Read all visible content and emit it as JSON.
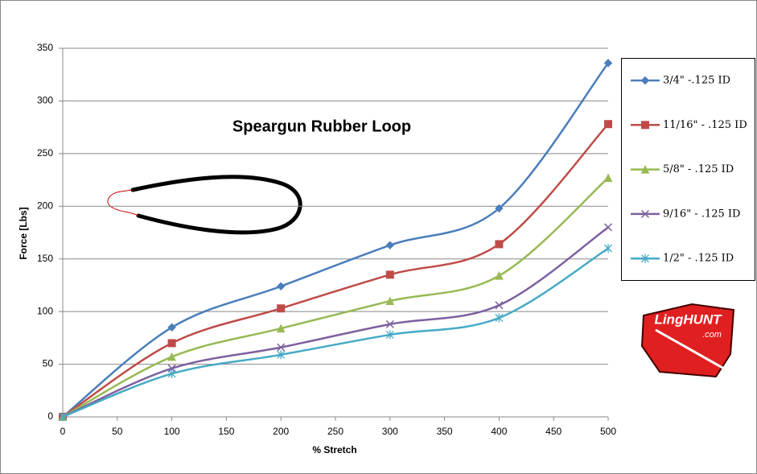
{
  "chart_data": {
    "type": "line",
    "title": "Speargun Rubber Loop",
    "x_label": "% Stretch",
    "y_label": "Force  [Lbs]",
    "x": [
      0,
      100,
      200,
      300,
      400,
      500
    ],
    "xlim": [
      0,
      500
    ],
    "xticks": [
      0,
      50,
      100,
      150,
      200,
      250,
      300,
      350,
      400,
      450,
      500
    ],
    "ylim": [
      0,
      350
    ],
    "yticks": [
      0,
      50,
      100,
      150,
      200,
      250,
      300,
      350
    ],
    "grid": true,
    "legend": "right",
    "series": [
      {
        "name": "3/4\" -.125 ID",
        "color": "#4a7ebb",
        "marker": "diamond",
        "values": [
          0,
          85,
          124,
          163,
          198,
          336
        ]
      },
      {
        "name": "11/16\" - .125 ID",
        "color": "#be4b48",
        "marker": "square",
        "values": [
          0,
          70,
          103,
          135,
          164,
          278
        ]
      },
      {
        "name": "5/8\" - .125 ID",
        "color": "#98b954",
        "marker": "triangle",
        "values": [
          0,
          57,
          84,
          110,
          134,
          227
        ]
      },
      {
        "name": "9/16\" - .125 ID",
        "color": "#7d60a0",
        "marker": "x",
        "values": [
          0,
          46,
          66,
          88,
          106,
          180
        ]
      },
      {
        "name": "1/2\" - .125 ID",
        "color": "#46aac5",
        "marker": "asterisk",
        "values": [
          0,
          41,
          59,
          78,
          94,
          160
        ]
      }
    ],
    "logo": {
      "text": "LingHUNT",
      "subtext": ".com"
    }
  }
}
